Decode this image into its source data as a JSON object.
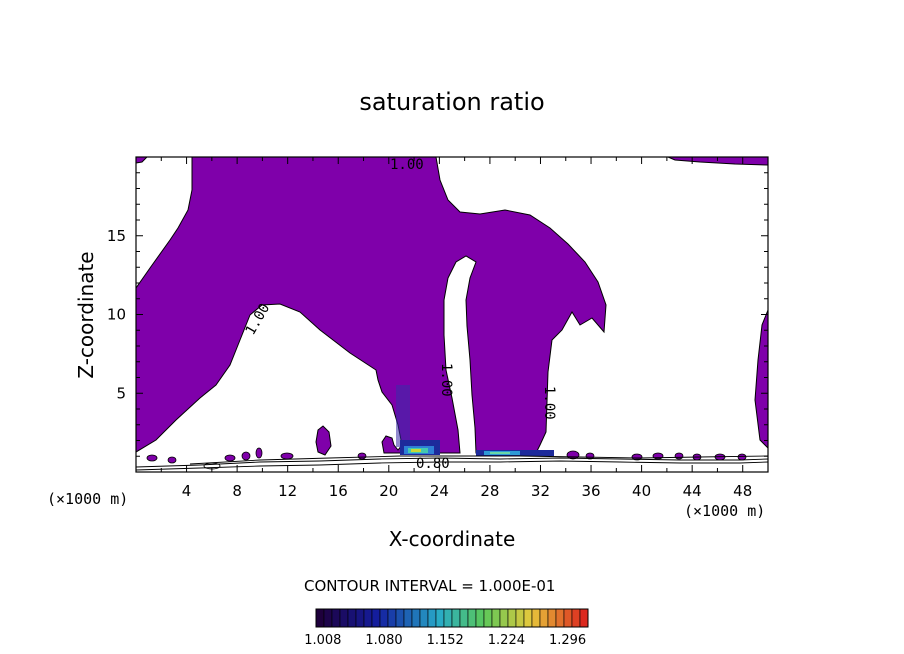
{
  "chart_data": {
    "type": "contour",
    "title": "saturation ratio",
    "xlabel": "X-coordinate",
    "ylabel": "Z-coordinate",
    "x_unit": "(×1000 m)",
    "y_unit": "(×1000 m)",
    "xlim": [
      0,
      50
    ],
    "ylim": [
      0,
      20
    ],
    "x_ticks": [
      4,
      8,
      12,
      16,
      20,
      24,
      28,
      32,
      36,
      40,
      44,
      48
    ],
    "y_ticks": [
      5,
      10,
      15
    ],
    "contour_interval": "CONTOUR INTERVAL = 1.000E-01",
    "contour_labels": [
      "1.00",
      "1.00",
      "1.00",
      "1.00",
      "0.80"
    ],
    "colorbar": {
      "tick_labels": [
        "1.008",
        "1.080",
        "1.152",
        "1.224",
        "1.296"
      ],
      "min": 1.0,
      "max": 1.32
    },
    "fill_color": "#7f00aa"
  }
}
